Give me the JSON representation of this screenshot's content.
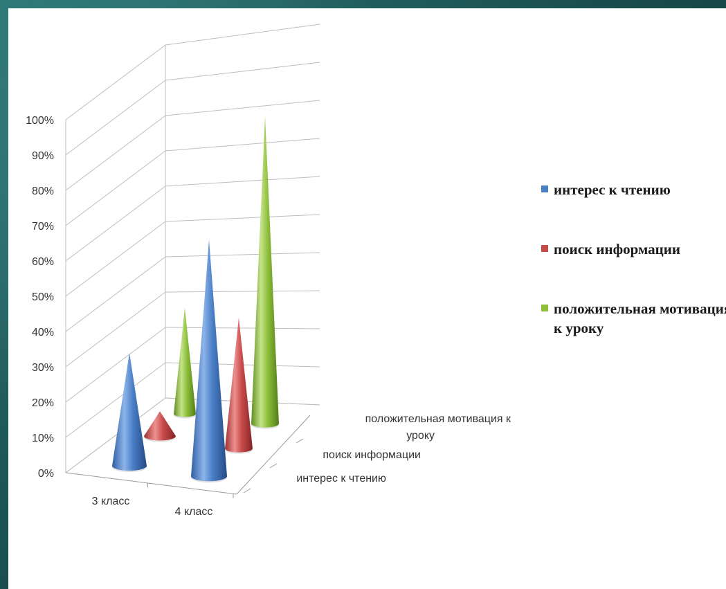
{
  "chart_data": {
    "type": "bar",
    "bar_shape": "cone",
    "three_d": true,
    "categories": [
      "3 класс",
      "4 класс"
    ],
    "series": [
      {
        "name": "интерес  к чтению",
        "values": [
          32,
          67
        ]
      },
      {
        "name": "поиск информации",
        "values": [
          7,
          39
        ]
      },
      {
        "name": "положительная мотивация к уроку",
        "values": [
          43,
          87
        ]
      }
    ],
    "depth_labels": [
      "интерес  к чтению",
      "поиск информации",
      "положительная мотивация к уроку"
    ],
    "yticks": [
      "0%",
      "10%",
      "20%",
      "30%",
      "40%",
      "50%",
      "60%",
      "70%",
      "80%",
      "90%",
      "100%"
    ],
    "ylim": [
      0,
      100
    ],
    "grid": true,
    "legend_position": "right",
    "colors": [
      "#4a7fc6",
      "#c84b4b",
      "#8dbf3a"
    ]
  },
  "legend": {
    "items": [
      {
        "label": "интерес  к чтению",
        "color": "#4a7fc6"
      },
      {
        "label": "поиск информации",
        "color": "#c84b4b"
      },
      {
        "label": "положительная мотивация к уроку",
        "color": "#8dbf3a"
      }
    ]
  }
}
